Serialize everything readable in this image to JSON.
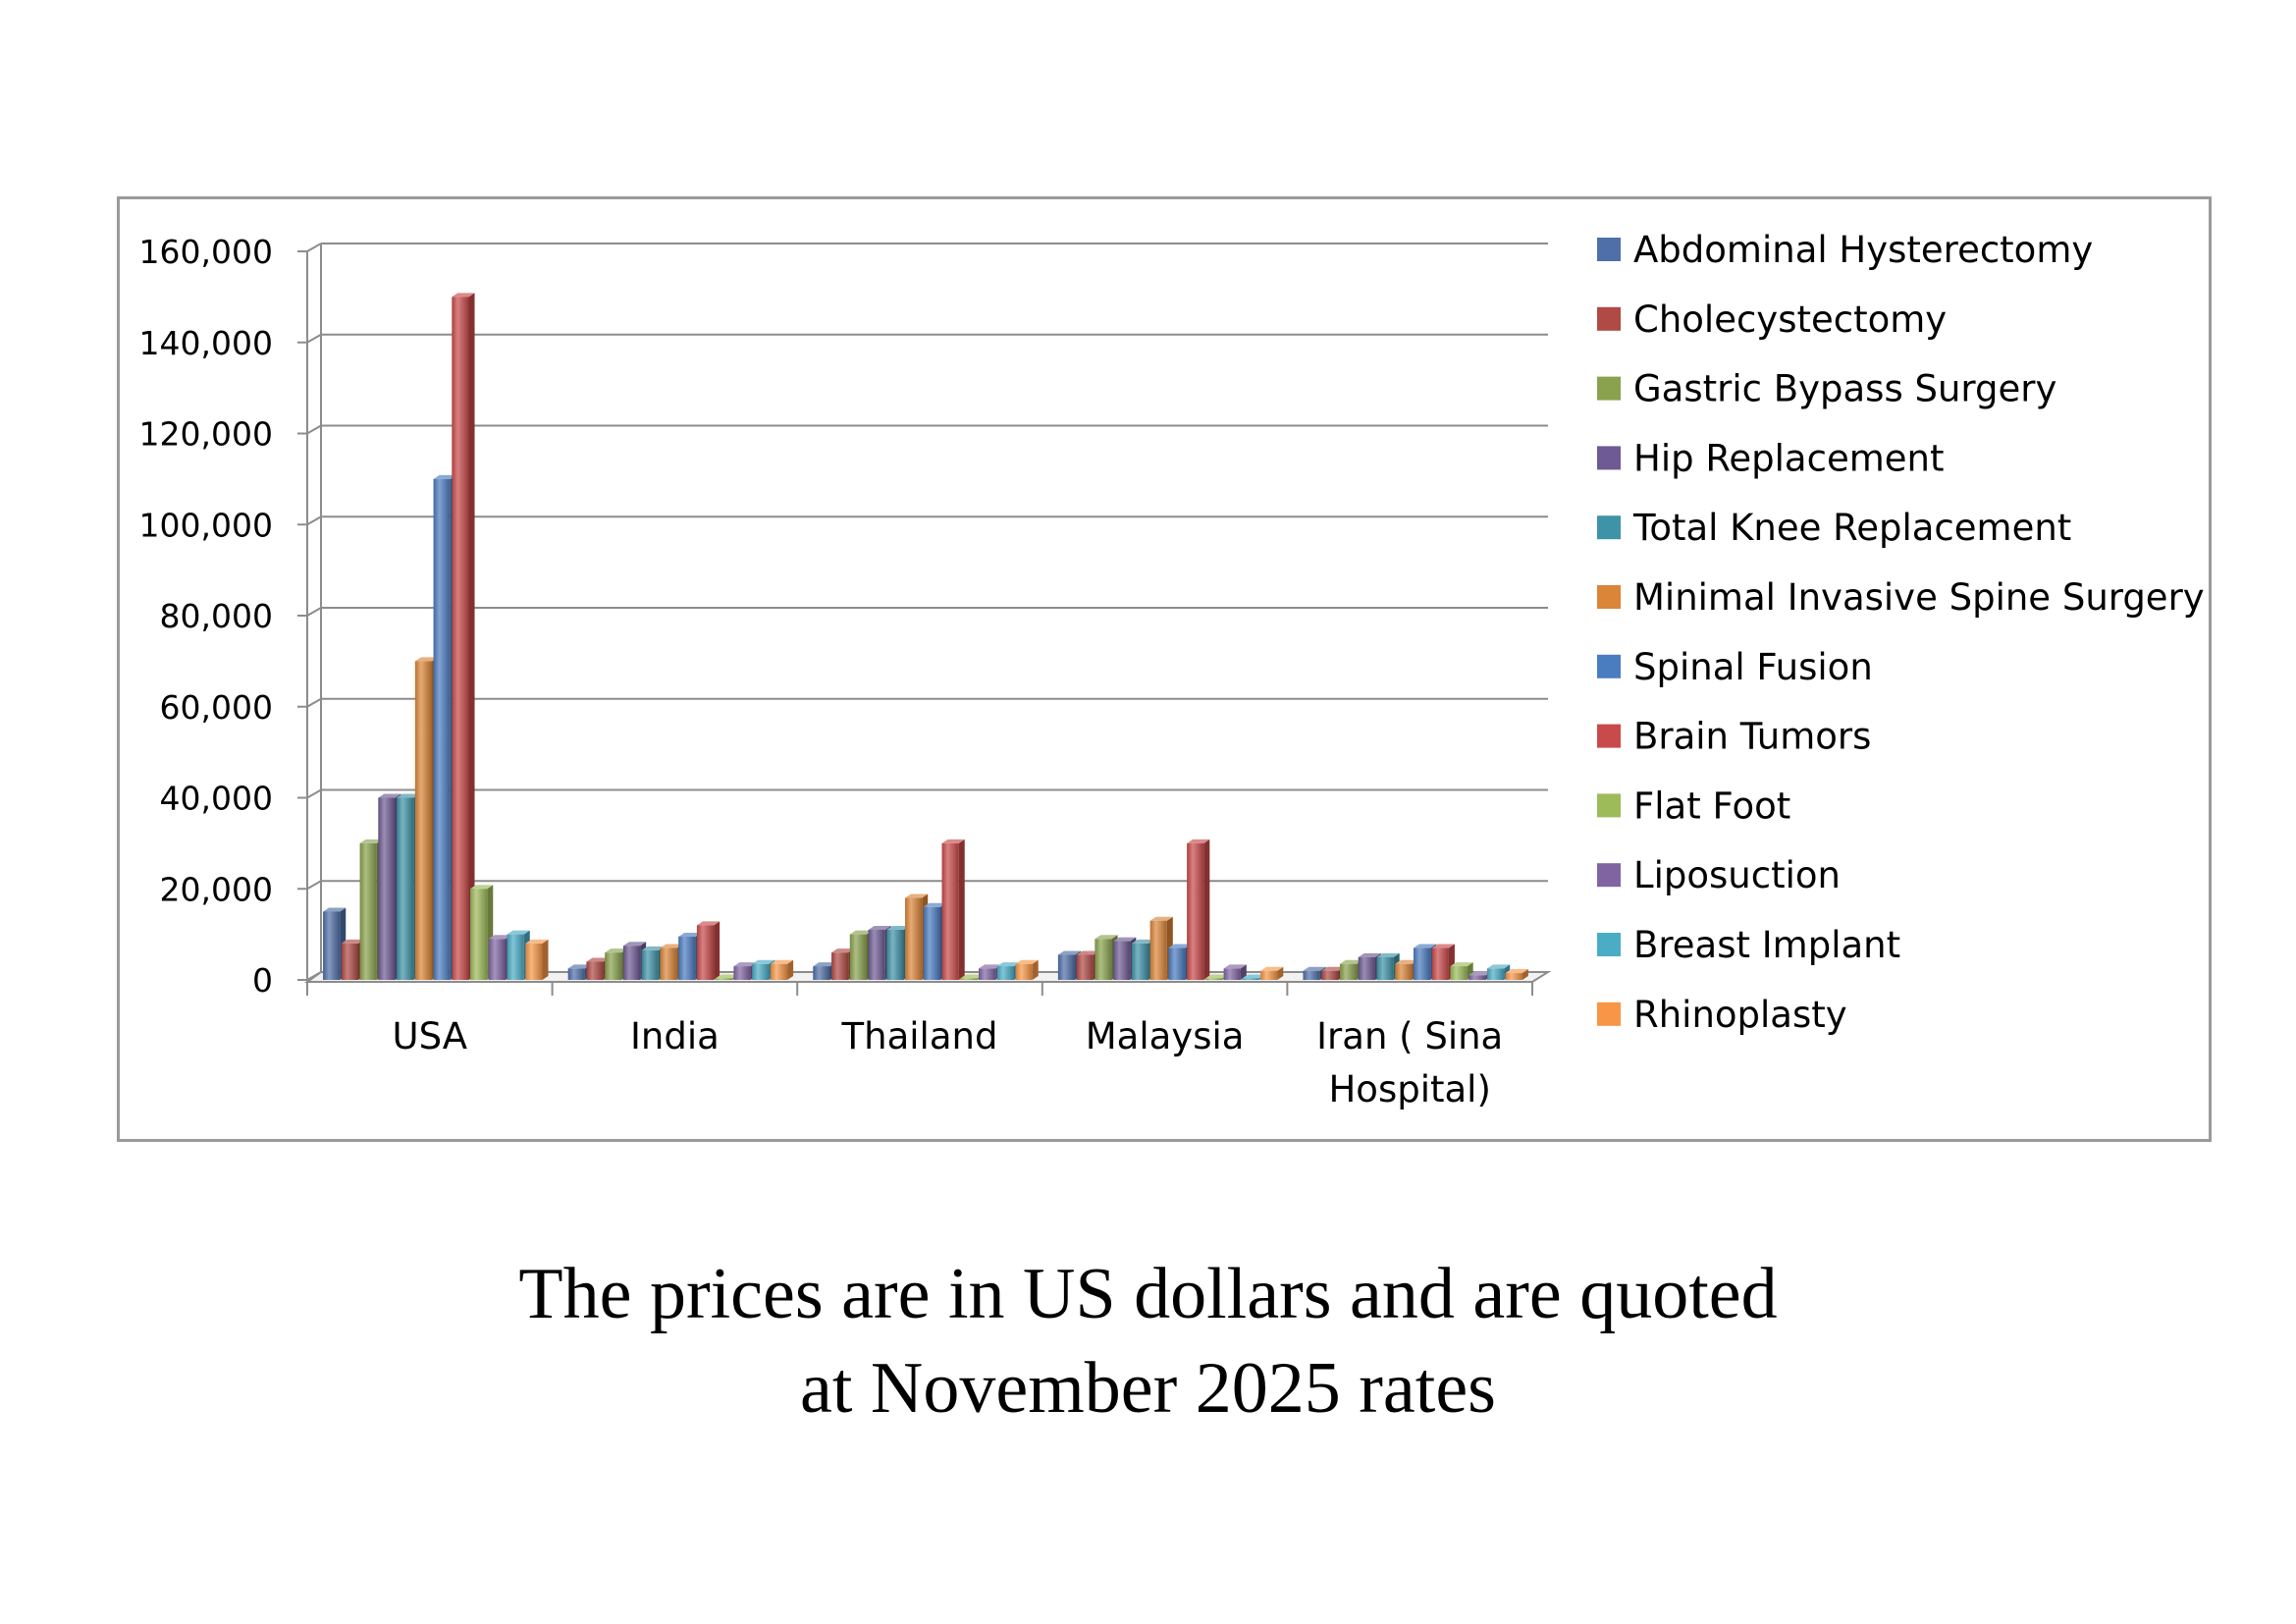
{
  "chart_data": {
    "type": "bar",
    "title": "",
    "xlabel": "",
    "ylabel": "",
    "ylim": [
      0,
      160000
    ],
    "yticks": [
      0,
      20000,
      40000,
      60000,
      80000,
      100000,
      120000,
      140000,
      160000
    ],
    "ytick_labels": [
      "0",
      "20,000",
      "40,000",
      "60,000",
      "80,000",
      "100,000",
      "120,000",
      "140,000",
      "160,000"
    ],
    "grid": true,
    "legend_position": "right",
    "categories": [
      "USA",
      "India",
      "Thailand",
      "Malaysia",
      "Iran ( Sina Hospital)"
    ],
    "category_label_lines": [
      [
        "USA"
      ],
      [
        "India"
      ],
      [
        "Thailand"
      ],
      [
        "Malaysia"
      ],
      [
        "Iran ( Sina",
        "Hospital)"
      ]
    ],
    "series": [
      {
        "name": "Abdominal Hysterectomy",
        "color": "#4F6FA8",
        "values": [
          15000,
          2500,
          3000,
          5500,
          2000
        ]
      },
      {
        "name": "Cholecystectomy",
        "color": "#B04A45",
        "values": [
          8000,
          4000,
          6000,
          5500,
          2000
        ]
      },
      {
        "name": "Gastric Bypass Surgery",
        "color": "#8AA24E",
        "values": [
          30000,
          6000,
          10000,
          9000,
          3500
        ]
      },
      {
        "name": "Hip Replacement",
        "color": "#6E5A94",
        "values": [
          40000,
          7500,
          11000,
          8500,
          5000
        ]
      },
      {
        "name": "Total Knee Replacement",
        "color": "#3E93A8",
        "values": [
          40000,
          6500,
          11000,
          8000,
          5000
        ]
      },
      {
        "name": "Minimal Invasive Spine Surgery",
        "color": "#DB8538",
        "values": [
          70000,
          7000,
          18000,
          13000,
          3500
        ]
      },
      {
        "name": "Spinal Fusion",
        "color": "#4A7CC0",
        "values": [
          110000,
          9500,
          16000,
          7000,
          7000
        ]
      },
      {
        "name": "Brain Tumors",
        "color": "#C94A4A",
        "values": [
          150000,
          12000,
          30000,
          30000,
          7000
        ]
      },
      {
        "name": "Flat Foot",
        "color": "#9DBB59",
        "values": [
          20000,
          0,
          0,
          0,
          3000
        ]
      },
      {
        "name": "Liposuction",
        "color": "#8064A2",
        "values": [
          9000,
          3000,
          2500,
          2500,
          1000
        ]
      },
      {
        "name": "Breast Implant",
        "color": "#4BACC6",
        "values": [
          10000,
          3500,
          3000,
          0,
          2500
        ]
      },
      {
        "name": "Rhinoplasty",
        "color": "#F79646",
        "values": [
          8000,
          3500,
          3500,
          2000,
          1500
        ]
      }
    ]
  },
  "caption": {
    "line1": "The prices are in US dollars and are quoted",
    "line2": "at November 2025 rates"
  }
}
